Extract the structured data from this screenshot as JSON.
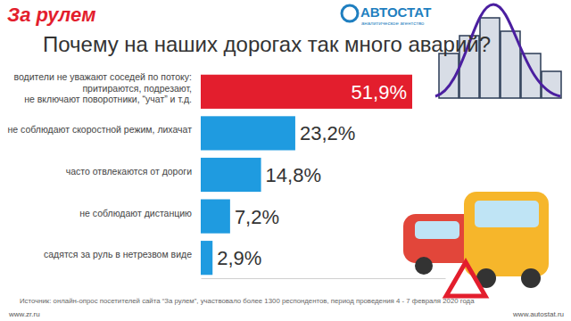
{
  "chart_data": {
    "type": "bar",
    "orientation": "horizontal",
    "title": "Почему на наших дорогах так много аварий?",
    "categories": [
      "водители не уважают соседей по потоку:\nпритираются, подрезают,\nне включают поворотники, “учат” и т.д.",
      "не соблюдают скоростной режим, лихачат",
      "часто отвлекаются от дороги",
      "не соблюдают дистанцию",
      "садятся за руль в нетрезвом виде"
    ],
    "values": [
      51.9,
      23.2,
      14.8,
      7.2,
      2.9
    ],
    "value_labels": [
      "51,9%",
      "23,2%",
      "14,8%",
      "7,2%",
      "2,9%"
    ],
    "colors": [
      "#e31e2d",
      "#1f9be0",
      "#1f9be0",
      "#1f9be0",
      "#1f9be0"
    ],
    "xlim": [
      0,
      60
    ],
    "data_labels": true,
    "tick_labels": "y",
    "annotations": [
      "За рулем",
      "АВТОСТАТ",
      "аналитическое агентство",
      "Источник: онлайн-опрос посетителей сайта “За рулем”, участвовало более 1300 респондентов, период проведения 4 - 7 февраля 2020 года",
      "www.zr.ru",
      "www.autostat.ru"
    ]
  }
}
